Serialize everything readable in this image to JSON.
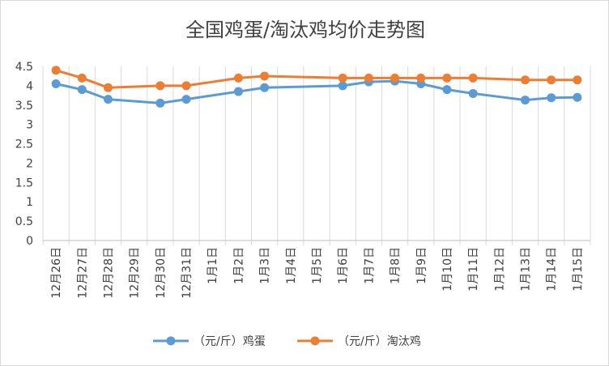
{
  "chart_data": {
    "type": "line",
    "title": "全国鸡蛋/淘汰鸡均价走势图",
    "xlabel": "",
    "ylabel": "",
    "ylim": [
      0,
      4.5
    ],
    "yticks": [
      "0",
      "0.5",
      "1",
      "1.5",
      "2",
      "2.5",
      "3",
      "3.5",
      "4",
      "4.5"
    ],
    "grid": "vertical",
    "legend_position": "bottom",
    "categories": [
      "12月26日",
      "12月27日",
      "12月28日",
      "12月29日",
      "12月30日",
      "12月31日",
      "1月1日",
      "1月2日",
      "1月3日",
      "1月4日",
      "1月5日",
      "1月6日",
      "1月7日",
      "1月8日",
      "1月9日",
      "1月10日",
      "1月11日",
      "1月12日",
      "1月13日",
      "1月14日",
      "1月15日"
    ],
    "series": [
      {
        "name": "（元/斤）鸡蛋",
        "color": "#5b9bd5",
        "values": [
          4.05,
          3.9,
          3.65,
          null,
          3.55,
          3.65,
          null,
          3.85,
          3.95,
          null,
          null,
          4.0,
          4.1,
          4.12,
          4.05,
          3.9,
          3.8,
          null,
          3.63,
          3.69,
          3.7
        ]
      },
      {
        "name": "（元/斤）淘汰鸡",
        "color": "#ed7d31",
        "values": [
          4.4,
          4.2,
          3.95,
          null,
          4.0,
          4.0,
          null,
          4.2,
          4.25,
          null,
          null,
          4.2,
          4.2,
          4.2,
          4.2,
          4.2,
          4.2,
          null,
          4.15,
          4.15,
          4.15
        ]
      }
    ]
  }
}
